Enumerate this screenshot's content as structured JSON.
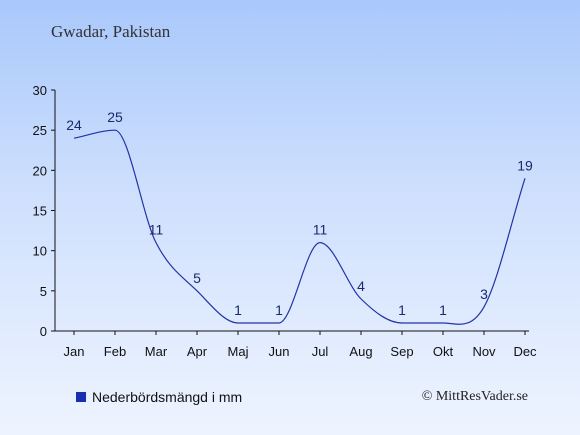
{
  "header": {
    "place": "Gwadar, Pakistan"
  },
  "legend": {
    "label": "Nederbördsmängd i mm"
  },
  "footer": {
    "credit": "© MittResVader.se"
  },
  "colors": {
    "line": "#2233a8",
    "swatch": "#1a2fb0",
    "axis": "#111111"
  },
  "chart_data": {
    "type": "line",
    "categories": [
      "Jan",
      "Feb",
      "Mar",
      "Apr",
      "Maj",
      "Jun",
      "Jul",
      "Aug",
      "Sep",
      "Okt",
      "Nov",
      "Dec"
    ],
    "series": [
      {
        "name": "Nederbördsmängd i mm",
        "values": [
          24,
          25,
          11,
          5,
          1,
          1,
          11,
          4,
          1,
          1,
          3,
          19
        ]
      }
    ],
    "data_labels": [
      "24",
      "25",
      "11",
      "5",
      "1",
      "1",
      "11",
      "4",
      "1",
      "1",
      "3",
      "19"
    ],
    "yticks": [
      0,
      5,
      10,
      15,
      20,
      25,
      30
    ],
    "ylim": [
      0,
      30
    ],
    "grid": false,
    "legend_position": "bottom-left"
  }
}
